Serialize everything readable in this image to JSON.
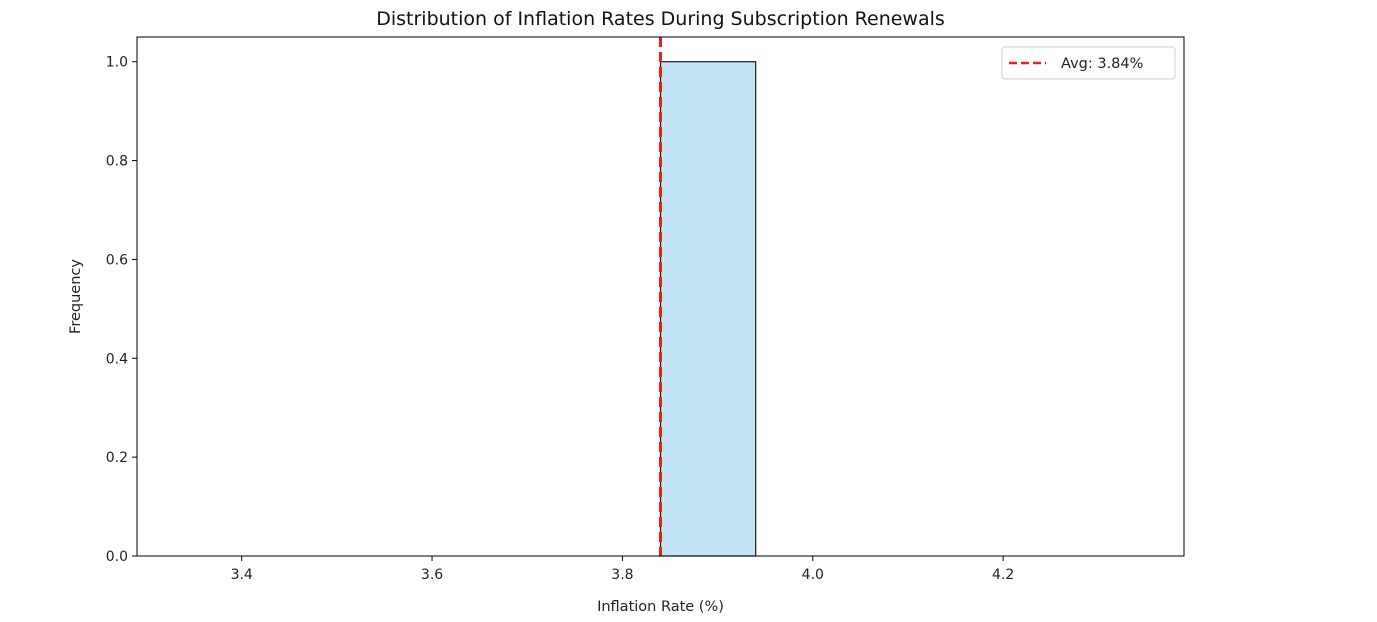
{
  "chart_data": {
    "type": "bar",
    "title": "Distribution of Inflation Rates During Subscription Renewals",
    "xlabel": "Inflation Rate (%)",
    "ylabel": "Frequency",
    "xlim": [
      3.29,
      4.39
    ],
    "ylim": [
      0,
      1.05
    ],
    "x_ticks": [
      3.4,
      3.6,
      3.8,
      4.0,
      4.2
    ],
    "x_tick_labels": [
      "3.4",
      "3.6",
      "3.8",
      "4.0",
      "4.2"
    ],
    "y_ticks": [
      0.0,
      0.2,
      0.4,
      0.6,
      0.8,
      1.0
    ],
    "y_tick_labels": [
      "0.0",
      "0.2",
      "0.4",
      "0.6",
      "0.8",
      "1.0"
    ],
    "bins": [
      {
        "start": 3.34,
        "end": 3.44,
        "count": 0
      },
      {
        "start": 3.44,
        "end": 3.54,
        "count": 0
      },
      {
        "start": 3.54,
        "end": 3.64,
        "count": 0
      },
      {
        "start": 3.64,
        "end": 3.74,
        "count": 0
      },
      {
        "start": 3.74,
        "end": 3.84,
        "count": 0
      },
      {
        "start": 3.84,
        "end": 3.94,
        "count": 1
      },
      {
        "start": 3.94,
        "end": 4.04,
        "count": 0
      },
      {
        "start": 4.04,
        "end": 4.14,
        "count": 0
      },
      {
        "start": 4.14,
        "end": 4.24,
        "count": 0
      },
      {
        "start": 4.24,
        "end": 4.34,
        "count": 0
      }
    ],
    "bar_color": "#c2e3f3",
    "bar_edge_color": "#1a1a1a",
    "average": {
      "value": 3.84,
      "label": "Avg: 3.84%",
      "color": "#e8201a",
      "style": "dashed"
    },
    "legend": {
      "position": "top-right",
      "entries": [
        "Avg: 3.84%"
      ]
    },
    "grid": false
  }
}
